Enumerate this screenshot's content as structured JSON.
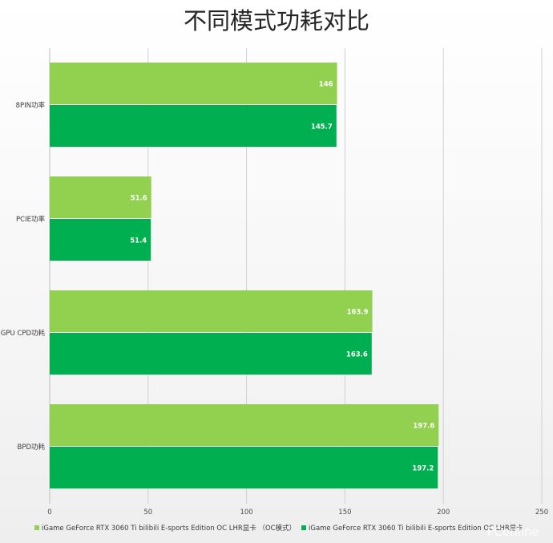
{
  "chart_data": {
    "type": "bar",
    "orientation": "horizontal",
    "title": "不同模式功耗对比",
    "categories": [
      "8PIN功率",
      "PCIE功率",
      "GPU CPD功耗",
      "BPD功耗"
    ],
    "series": [
      {
        "name": "iGame GeForce RTX 3060  Ti bilibili E-sports Edition OC LHR显卡 （OC模式）",
        "values": [
          146,
          51.6,
          163.9,
          197.6
        ],
        "color": "#92d050"
      },
      {
        "name": "iGame GeForce RTX 3060  Ti bilibili E-sports Edition OC LHR显卡",
        "values": [
          145.7,
          51.4,
          163.6,
          197.2
        ],
        "color": "#00b050"
      }
    ],
    "xlim": [
      0,
      250
    ],
    "xticks": [
      0,
      50,
      100,
      150,
      200,
      250
    ],
    "grid": true,
    "legend_position": "bottom"
  },
  "watermark": "PConline"
}
